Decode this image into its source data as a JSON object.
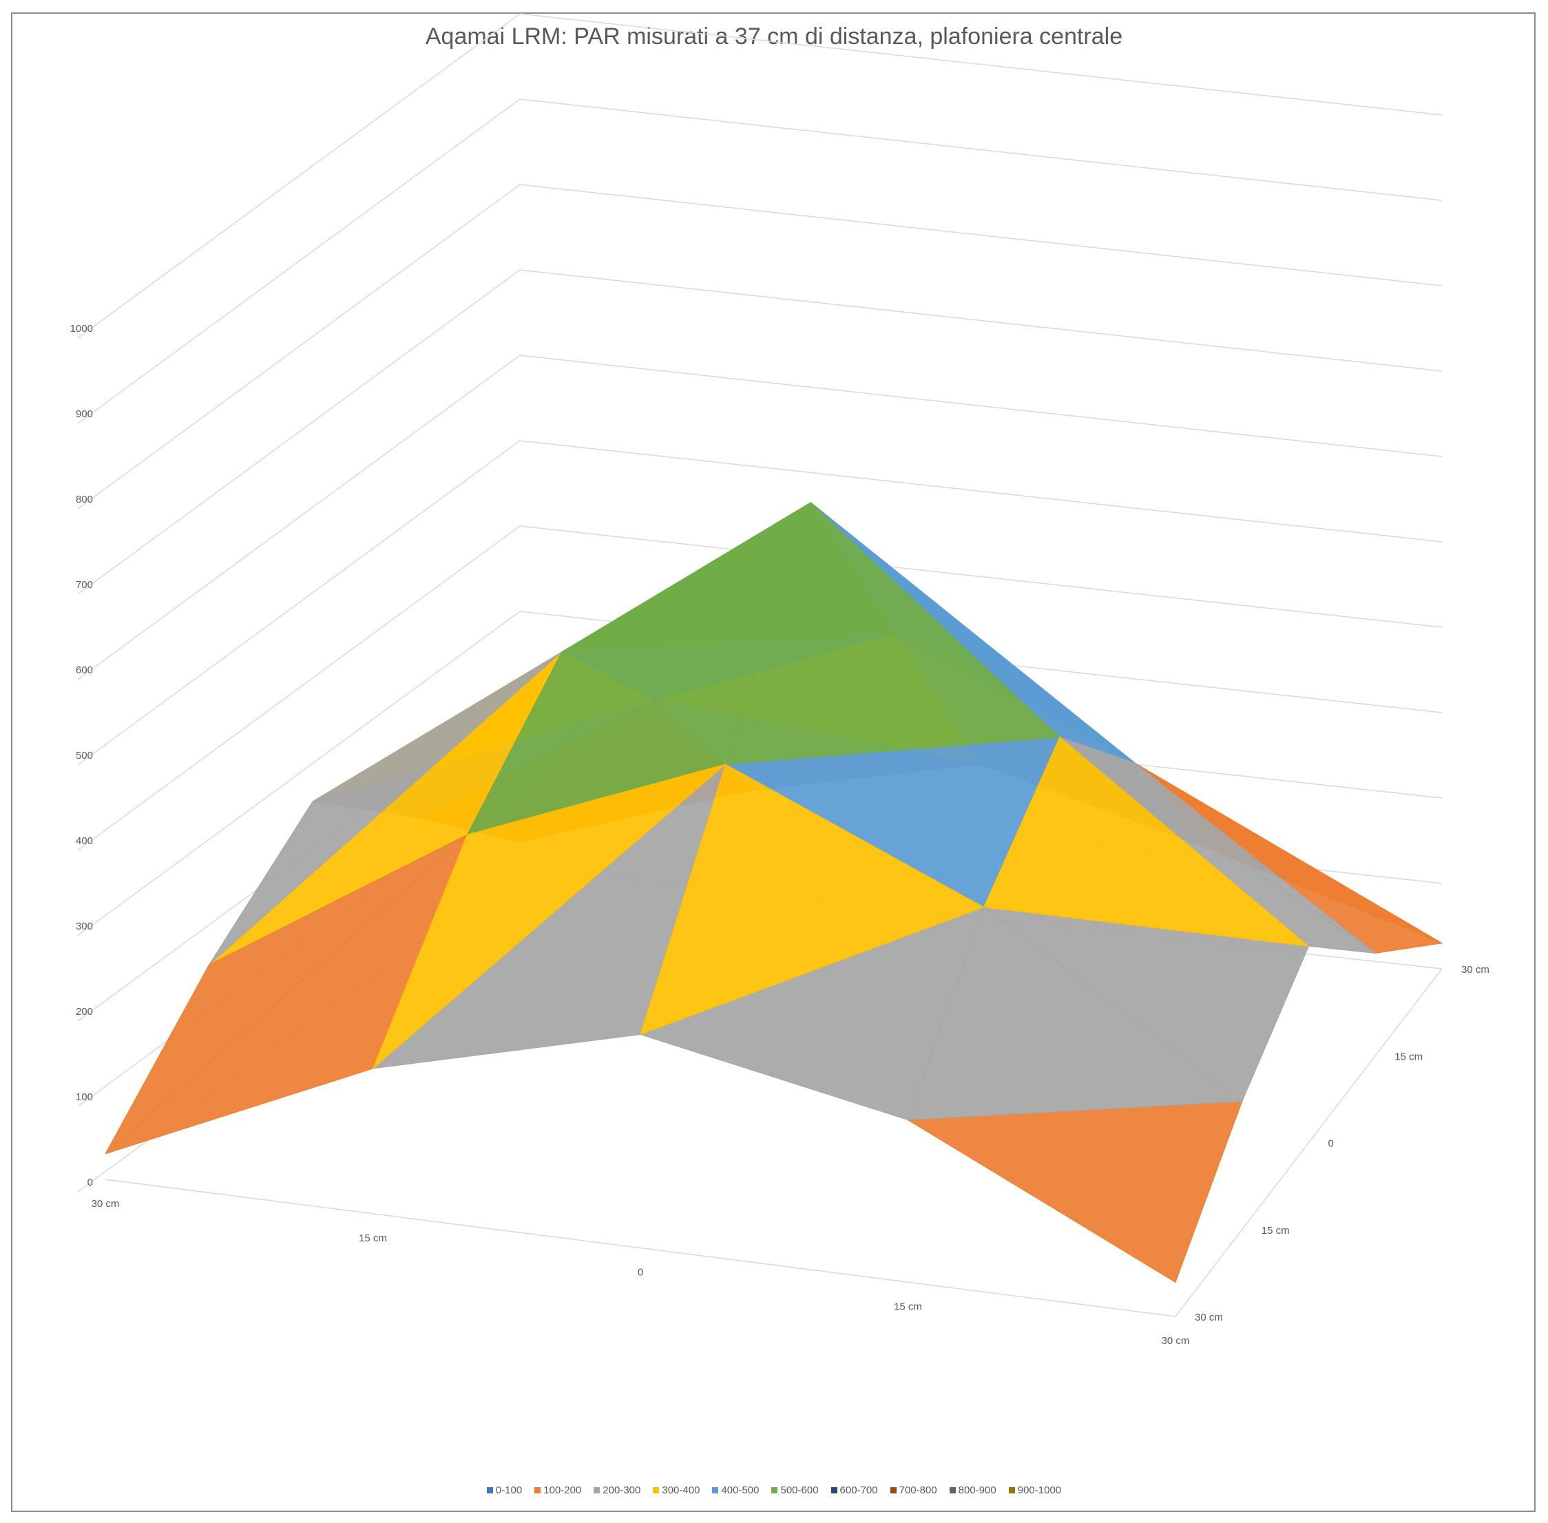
{
  "chart_data": {
    "type": "surface",
    "title": "Aqamai LRM: PAR misurati a 37 cm di distanza, plafoniera centrale",
    "x_ticks": [
      "30 cm",
      "15 cm",
      "0",
      "15 cm",
      "30 cm"
    ],
    "y_ticks": [
      "30 cm",
      "15 cm",
      "0",
      "15 cm",
      "30 cm"
    ],
    "z_ticks": [
      "0",
      "100",
      "200",
      "300",
      "400",
      "500",
      "600",
      "700",
      "800",
      "900",
      "1000"
    ],
    "zlim": [
      0,
      1000
    ],
    "grid": true,
    "legend_position": "bottom",
    "bands": [
      {
        "name": "0-100",
        "color": "#4472c4"
      },
      {
        "name": "100-200",
        "color": "#ed7d31"
      },
      {
        "name": "200-300",
        "color": "#a5a5a5"
      },
      {
        "name": "300-400",
        "color": "#ffc000"
      },
      {
        "name": "400-500",
        "color": "#5b9bd5"
      },
      {
        "name": "500-600",
        "color": "#70ad47"
      },
      {
        "name": "600-700",
        "color": "#264478"
      },
      {
        "name": "700-800",
        "color": "#9e480e"
      },
      {
        "name": "800-900",
        "color": "#636363"
      },
      {
        "name": "900-1000",
        "color": "#997300"
      }
    ],
    "values": [
      [
        30,
        170,
        250,
        190,
        40
      ],
      [
        160,
        350,
        470,
        340,
        150
      ],
      [
        260,
        470,
        680,
        440,
        230
      ],
      [
        150,
        320,
        430,
        310,
        120
      ],
      [
        30,
        120,
        180,
        110,
        30
      ]
    ]
  }
}
